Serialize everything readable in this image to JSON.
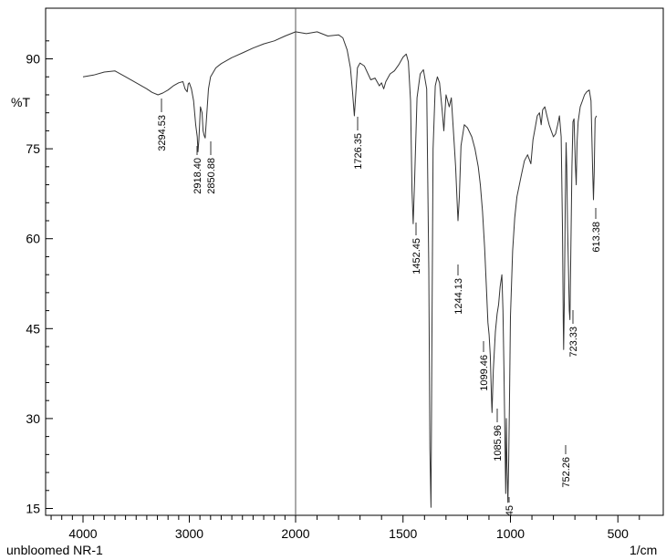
{
  "chart_data": {
    "type": "line",
    "title": "",
    "sample_label": "unbloomed NR-1",
    "xlabel": "1/cm",
    "ylabel": "%T",
    "xlim": [
      4400,
      300
    ],
    "ylim": [
      13.5,
      97.5
    ],
    "x_reversed": true,
    "grid": false,
    "x_ticks": [
      4000,
      3000,
      2000,
      1500,
      1000,
      500
    ],
    "y_ticks": [
      15,
      30,
      45,
      60,
      75,
      90
    ],
    "line_color": "#333333",
    "series": [
      {
        "points": [
          [
            4000,
            87.0
          ],
          [
            3900,
            87.3
          ],
          [
            3800,
            87.8
          ],
          [
            3700,
            88.0
          ],
          [
            3600,
            87.0
          ],
          [
            3500,
            86.0
          ],
          [
            3400,
            85.0
          ],
          [
            3350,
            84.4
          ],
          [
            3294.53,
            84.0
          ],
          [
            3250,
            84.3
          ],
          [
            3200,
            84.8
          ],
          [
            3150,
            85.5
          ],
          [
            3100,
            86.0
          ],
          [
            3060,
            86.2
          ],
          [
            3040,
            85.0
          ],
          [
            3020,
            84.5
          ],
          [
            3010,
            85.8
          ],
          [
            3000,
            86.0
          ],
          [
            2980,
            85.0
          ],
          [
            2960,
            83.0
          ],
          [
            2940,
            79.0
          ],
          [
            2925,
            77.0
          ],
          [
            2918.4,
            74.5
          ],
          [
            2910,
            76.5
          ],
          [
            2895,
            82.0
          ],
          [
            2880,
            81.0
          ],
          [
            2870,
            78.0
          ],
          [
            2860,
            77.2
          ],
          [
            2850.88,
            76.8
          ],
          [
            2840,
            79.5
          ],
          [
            2820,
            85.0
          ],
          [
            2800,
            87.0
          ],
          [
            2750,
            88.5
          ],
          [
            2700,
            89.2
          ],
          [
            2600,
            90.2
          ],
          [
            2500,
            91.0
          ],
          [
            2400,
            91.8
          ],
          [
            2300,
            92.5
          ],
          [
            2200,
            93.0
          ],
          [
            2100,
            93.8
          ],
          [
            2000,
            94.5
          ],
          [
            1950,
            94.2
          ],
          [
            1900,
            94.5
          ],
          [
            1850,
            93.8
          ],
          [
            1800,
            94.0
          ],
          [
            1780,
            93.5
          ],
          [
            1760,
            91.5
          ],
          [
            1745,
            88.5
          ],
          [
            1735,
            84.5
          ],
          [
            1726.35,
            80.5
          ],
          [
            1720,
            84.0
          ],
          [
            1712,
            88.5
          ],
          [
            1700,
            89.3
          ],
          [
            1680,
            88.8
          ],
          [
            1650,
            86.5
          ],
          [
            1630,
            86.8
          ],
          [
            1610,
            85.5
          ],
          [
            1600,
            86.0
          ],
          [
            1590,
            85.0
          ],
          [
            1580,
            86.2
          ],
          [
            1560,
            87.5
          ],
          [
            1540,
            88.0
          ],
          [
            1520,
            89.0
          ],
          [
            1500,
            90.3
          ],
          [
            1485,
            90.8
          ],
          [
            1475,
            89.5
          ],
          [
            1465,
            83.0
          ],
          [
            1458,
            68.0
          ],
          [
            1452.45,
            62.5
          ],
          [
            1446,
            70.0
          ],
          [
            1435,
            83.5
          ],
          [
            1420,
            87.5
          ],
          [
            1405,
            88.2
          ],
          [
            1390,
            85.0
          ],
          [
            1380,
            55.0
          ],
          [
            1375,
            25.0
          ],
          [
            1370,
            15.2
          ],
          [
            1365,
            45.0
          ],
          [
            1360,
            75.0
          ],
          [
            1350,
            85.5
          ],
          [
            1340,
            87.0
          ],
          [
            1330,
            86.0
          ],
          [
            1318,
            81.5
          ],
          [
            1310,
            78.0
          ],
          [
            1300,
            84.0
          ],
          [
            1285,
            82.0
          ],
          [
            1275,
            83.5
          ],
          [
            1262,
            76.0
          ],
          [
            1255,
            72.0
          ],
          [
            1248,
            66.0
          ],
          [
            1244.13,
            63.0
          ],
          [
            1238,
            67.0
          ],
          [
            1230,
            75.5
          ],
          [
            1215,
            79.0
          ],
          [
            1200,
            78.5
          ],
          [
            1180,
            77.0
          ],
          [
            1165,
            75.0
          ],
          [
            1150,
            72.0
          ],
          [
            1140,
            69.0
          ],
          [
            1130,
            64.5
          ],
          [
            1120,
            58.5
          ],
          [
            1112,
            52.0
          ],
          [
            1105,
            46.0
          ],
          [
            1099.46,
            44.0
          ],
          [
            1094,
            40.5
          ],
          [
            1088,
            33.0
          ],
          [
            1085.96,
            31.0
          ],
          [
            1080,
            38.0
          ],
          [
            1070,
            44.5
          ],
          [
            1062,
            47.5
          ],
          [
            1055,
            49.0
          ],
          [
            1048,
            52.0
          ],
          [
            1040,
            54.0
          ],
          [
            1035,
            48.0
          ],
          [
            1030,
            38.0
          ],
          [
            1025,
            25.0
          ],
          [
            1022,
            17.5
          ],
          [
            1019,
            30.0
          ],
          [
            1016,
            22.0
          ],
          [
            1012,
            16.0
          ],
          [
            1008,
            23.0
          ],
          [
            1004,
            35.0
          ],
          [
            1000,
            47.0
          ],
          [
            990,
            58.0
          ],
          [
            980,
            63.5
          ],
          [
            970,
            67.0
          ],
          [
            950,
            70.5
          ],
          [
            935,
            73.0
          ],
          [
            920,
            74.0
          ],
          [
            905,
            72.5
          ],
          [
            895,
            76.5
          ],
          [
            885,
            78.5
          ],
          [
            875,
            80.5
          ],
          [
            865,
            81.0
          ],
          [
            857,
            79.0
          ],
          [
            850,
            81.5
          ],
          [
            840,
            82.0
          ],
          [
            830,
            80.5
          ],
          [
            820,
            79.0
          ],
          [
            810,
            78.0
          ],
          [
            800,
            77.0
          ],
          [
            790,
            77.5
          ],
          [
            780,
            79.0
          ],
          [
            772,
            80.5
          ],
          [
            764,
            77.0
          ],
          [
            758,
            62.0
          ],
          [
            754,
            46.0
          ],
          [
            752.26,
            41.5
          ],
          [
            749,
            50.0
          ],
          [
            745,
            66.0
          ],
          [
            741,
            76.0
          ],
          [
            738,
            72.0
          ],
          [
            734,
            62.0
          ],
          [
            730,
            55.0
          ],
          [
            726,
            48.0
          ],
          [
            723.33,
            46.5
          ],
          [
            719,
            58.0
          ],
          [
            714,
            72.0
          ],
          [
            709,
            79.5
          ],
          [
            704,
            80.0
          ],
          [
            698,
            72.5
          ],
          [
            694,
            69.0
          ],
          [
            690,
            76.0
          ],
          [
            685,
            79.5
          ],
          [
            675,
            82.0
          ],
          [
            665,
            83.0
          ],
          [
            655,
            84.0
          ],
          [
            645,
            84.5
          ],
          [
            633,
            84.8
          ],
          [
            625,
            83.0
          ],
          [
            618,
            72.0
          ],
          [
            613.38,
            66.5
          ],
          [
            610,
            71.0
          ],
          [
            606,
            80.0
          ],
          [
            600,
            80.5
          ]
        ]
      }
    ],
    "peak_labels": [
      "3294.53",
      "2918.40",
      "2850.88",
      "1726.35",
      "1452.45",
      "1244.13",
      "1099.46",
      "1085.96",
      "752.26",
      "723.33",
      "613.38"
    ],
    "annotations": [
      {
        "x": 3294.53,
        "label": "3294.53"
      },
      {
        "x": 2918.4,
        "label": "2918.40"
      },
      {
        "x": 2850.88,
        "label": "2850.88"
      },
      {
        "x": 1726.35,
        "label": "1726.35"
      },
      {
        "x": 1452.45,
        "label": "1452.45"
      },
      {
        "x": 1244.13,
        "label": "1244.13"
      },
      {
        "x": 1099.46,
        "label": "1099.46"
      },
      {
        "x": 1085.96,
        "label": "1085.96"
      },
      {
        "x": 1015,
        "label": "45"
      },
      {
        "x": 752.26,
        "label": "752.26"
      },
      {
        "x": 723.33,
        "label": "723.33"
      },
      {
        "x": 613.38,
        "label": "613.38"
      }
    ]
  }
}
